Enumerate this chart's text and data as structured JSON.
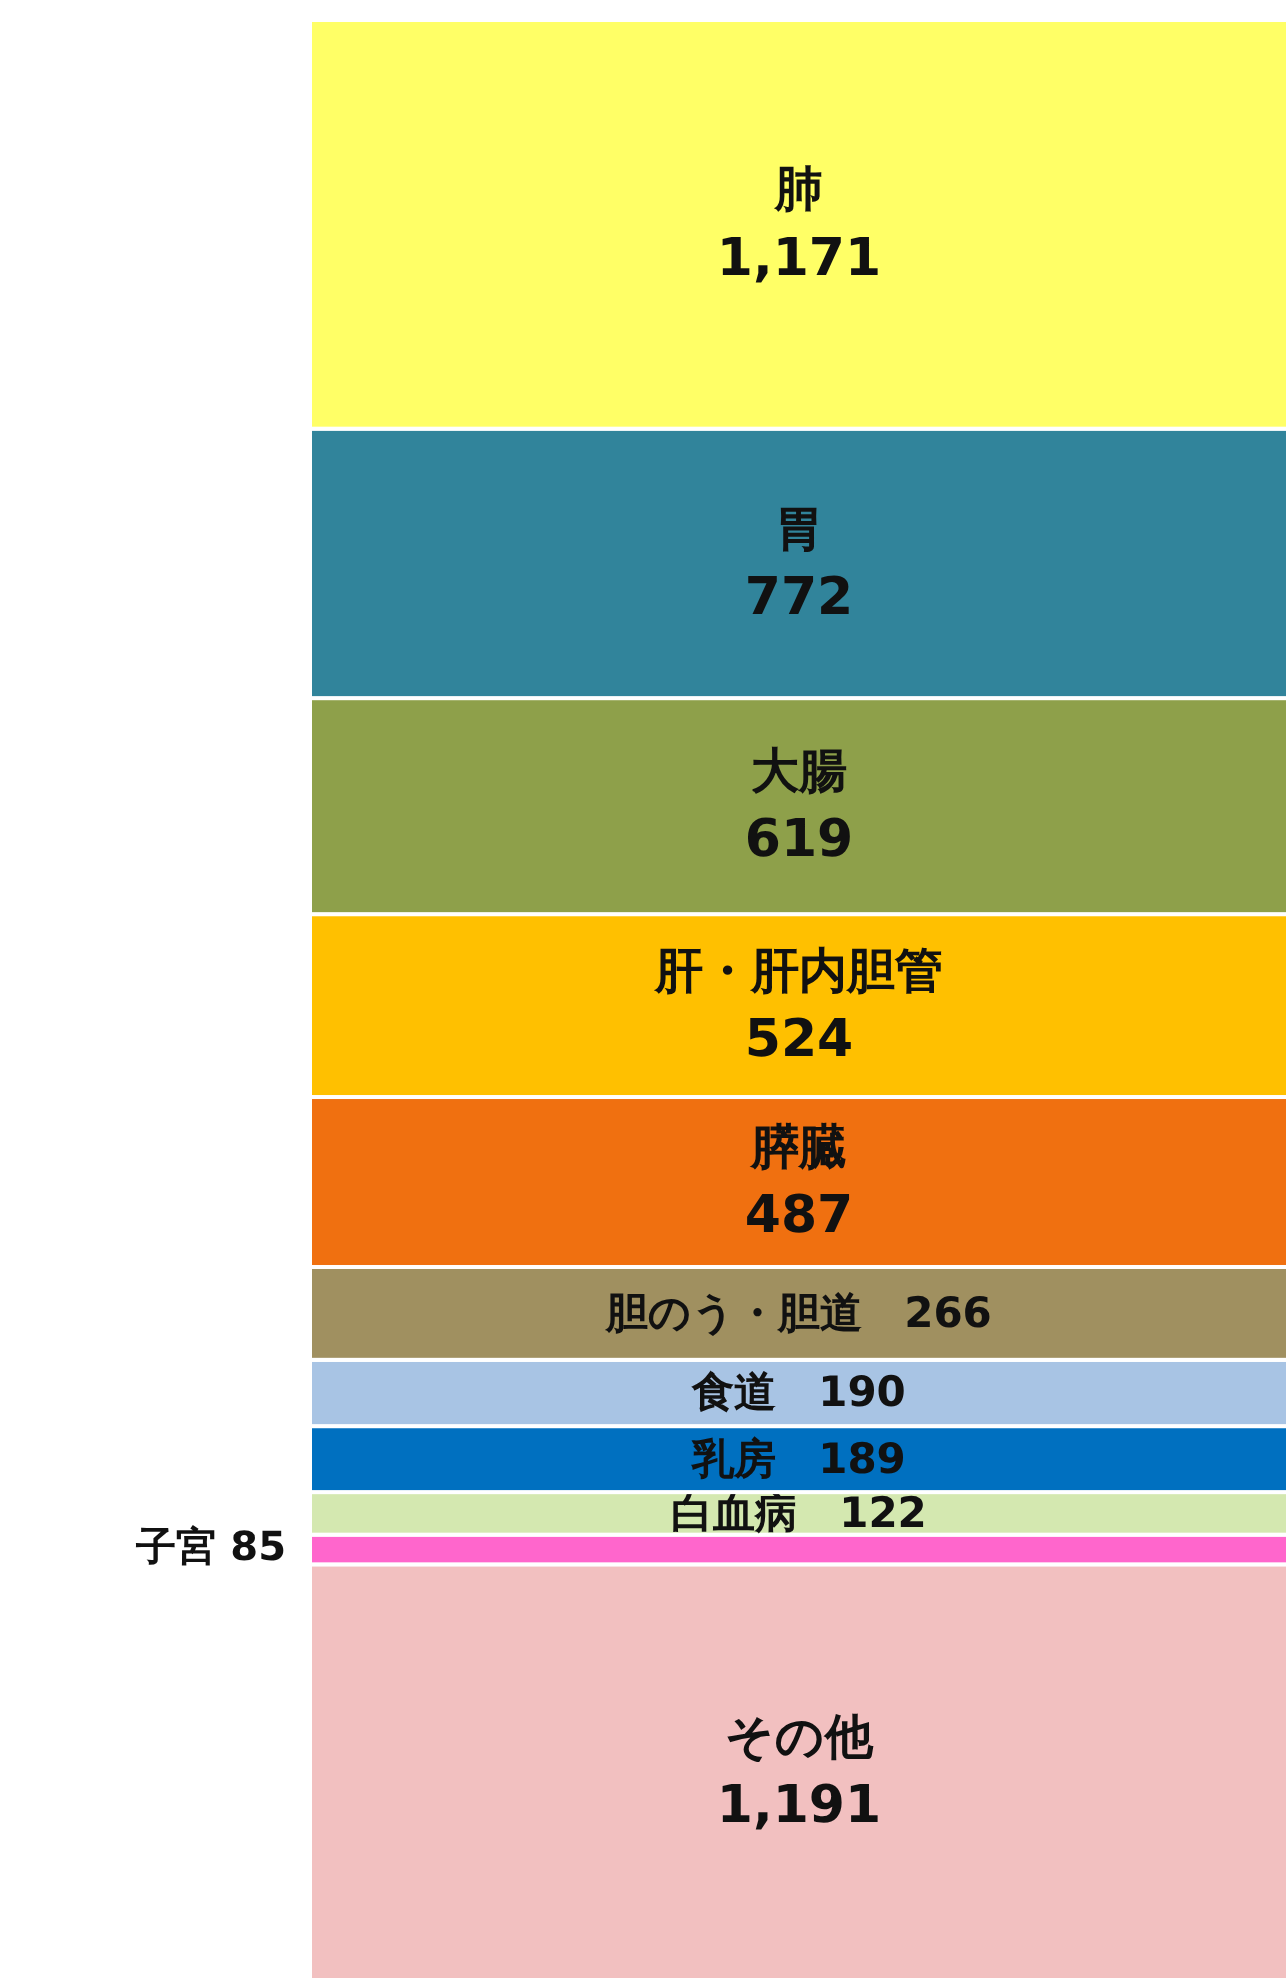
{
  "chart_data": {
    "type": "bar",
    "stacked": true,
    "categories": [
      null
    ],
    "data_labels": true,
    "series": [
      {
        "name": "その他",
        "color": "#f2c0c0",
        "values": [
          1191
        ],
        "value_labels": [
          "1,191"
        ]
      },
      {
        "name": "子宮",
        "color": "#ff66cc",
        "values": [
          85
        ],
        "value_labels": [
          "85"
        ]
      },
      {
        "name": "白血病",
        "color": "#d4e8b0",
        "values": [
          122
        ],
        "value_labels": [
          "122"
        ]
      },
      {
        "name": "乳房",
        "color": "#0070c0",
        "values": [
          189
        ],
        "value_labels": [
          "189"
        ]
      },
      {
        "name": "食道",
        "color": "#a8c4e4",
        "values": [
          190
        ],
        "value_labels": [
          "190"
        ]
      },
      {
        "name": "胆のう・胆道",
        "color": "#a09060",
        "values": [
          266
        ],
        "value_labels": [
          "266"
        ]
      },
      {
        "name": "膵臓",
        "color": "#f07010",
        "values": [
          487
        ],
        "value_labels": [
          "487"
        ]
      },
      {
        "name": "肝・肝内胆管",
        "color": "#ffc000",
        "values": [
          524
        ],
        "value_labels": [
          "524"
        ]
      },
      {
        "name": "大腸",
        "color": "#8ea04a",
        "values": [
          619
        ],
        "value_labels": [
          "619"
        ]
      },
      {
        "name": "胃",
        "color": "#31849b",
        "values": [
          772
        ],
        "value_labels": [
          "772"
        ]
      },
      {
        "name": "肺",
        "color": "#ffff66",
        "values": [
          1171
        ],
        "value_labels": [
          "1,171"
        ]
      }
    ]
  }
}
